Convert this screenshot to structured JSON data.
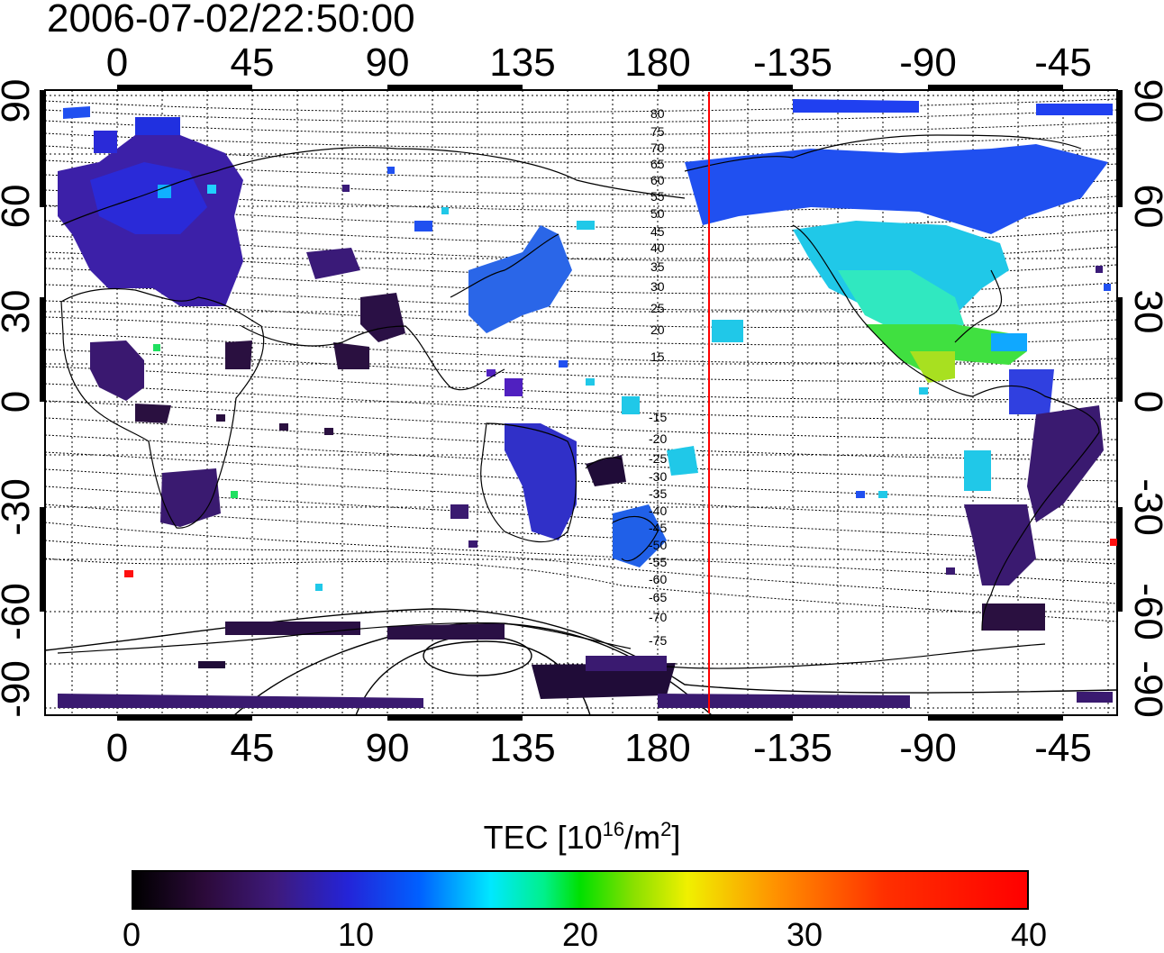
{
  "timestamp": "2006-07-02/22:50:00",
  "map": {
    "longitude_ticks": [
      "0",
      "45",
      "90",
      "135",
      "180",
      "-135",
      "-90",
      "-45"
    ],
    "latitude_ticks": [
      "90",
      "60",
      "30",
      "0",
      "-30",
      "-60",
      "-90"
    ],
    "terminator_longitude": -162,
    "magnetic_latitude_labels_north": [
      "80",
      "75",
      "70",
      "65",
      "60",
      "55",
      "50",
      "45",
      "40",
      "35",
      "30",
      "25",
      "20",
      "15"
    ],
    "magnetic_latitude_labels_south": [
      "-15",
      "-20",
      "-25",
      "-30",
      "-35",
      "-40",
      "-45",
      "-50",
      "-55",
      "-60",
      "-65",
      "-70",
      "-75"
    ],
    "colors": {
      "terminator": "#ff0000",
      "grid": "#000000"
    }
  },
  "colorbar": {
    "title_main": "TEC  [10",
    "title_exp1": "16",
    "title_mid": "/m",
    "title_exp2": "2",
    "title_end": "]",
    "min": 0,
    "max": 40,
    "ticks": [
      "0",
      "10",
      "20",
      "30",
      "40"
    ],
    "colors": [
      "#000000",
      "#3e1a7c",
      "#2424d8",
      "#0060ff",
      "#00e8ff",
      "#00e000",
      "#f0f000",
      "#ff9000",
      "#ff0000"
    ]
  }
}
